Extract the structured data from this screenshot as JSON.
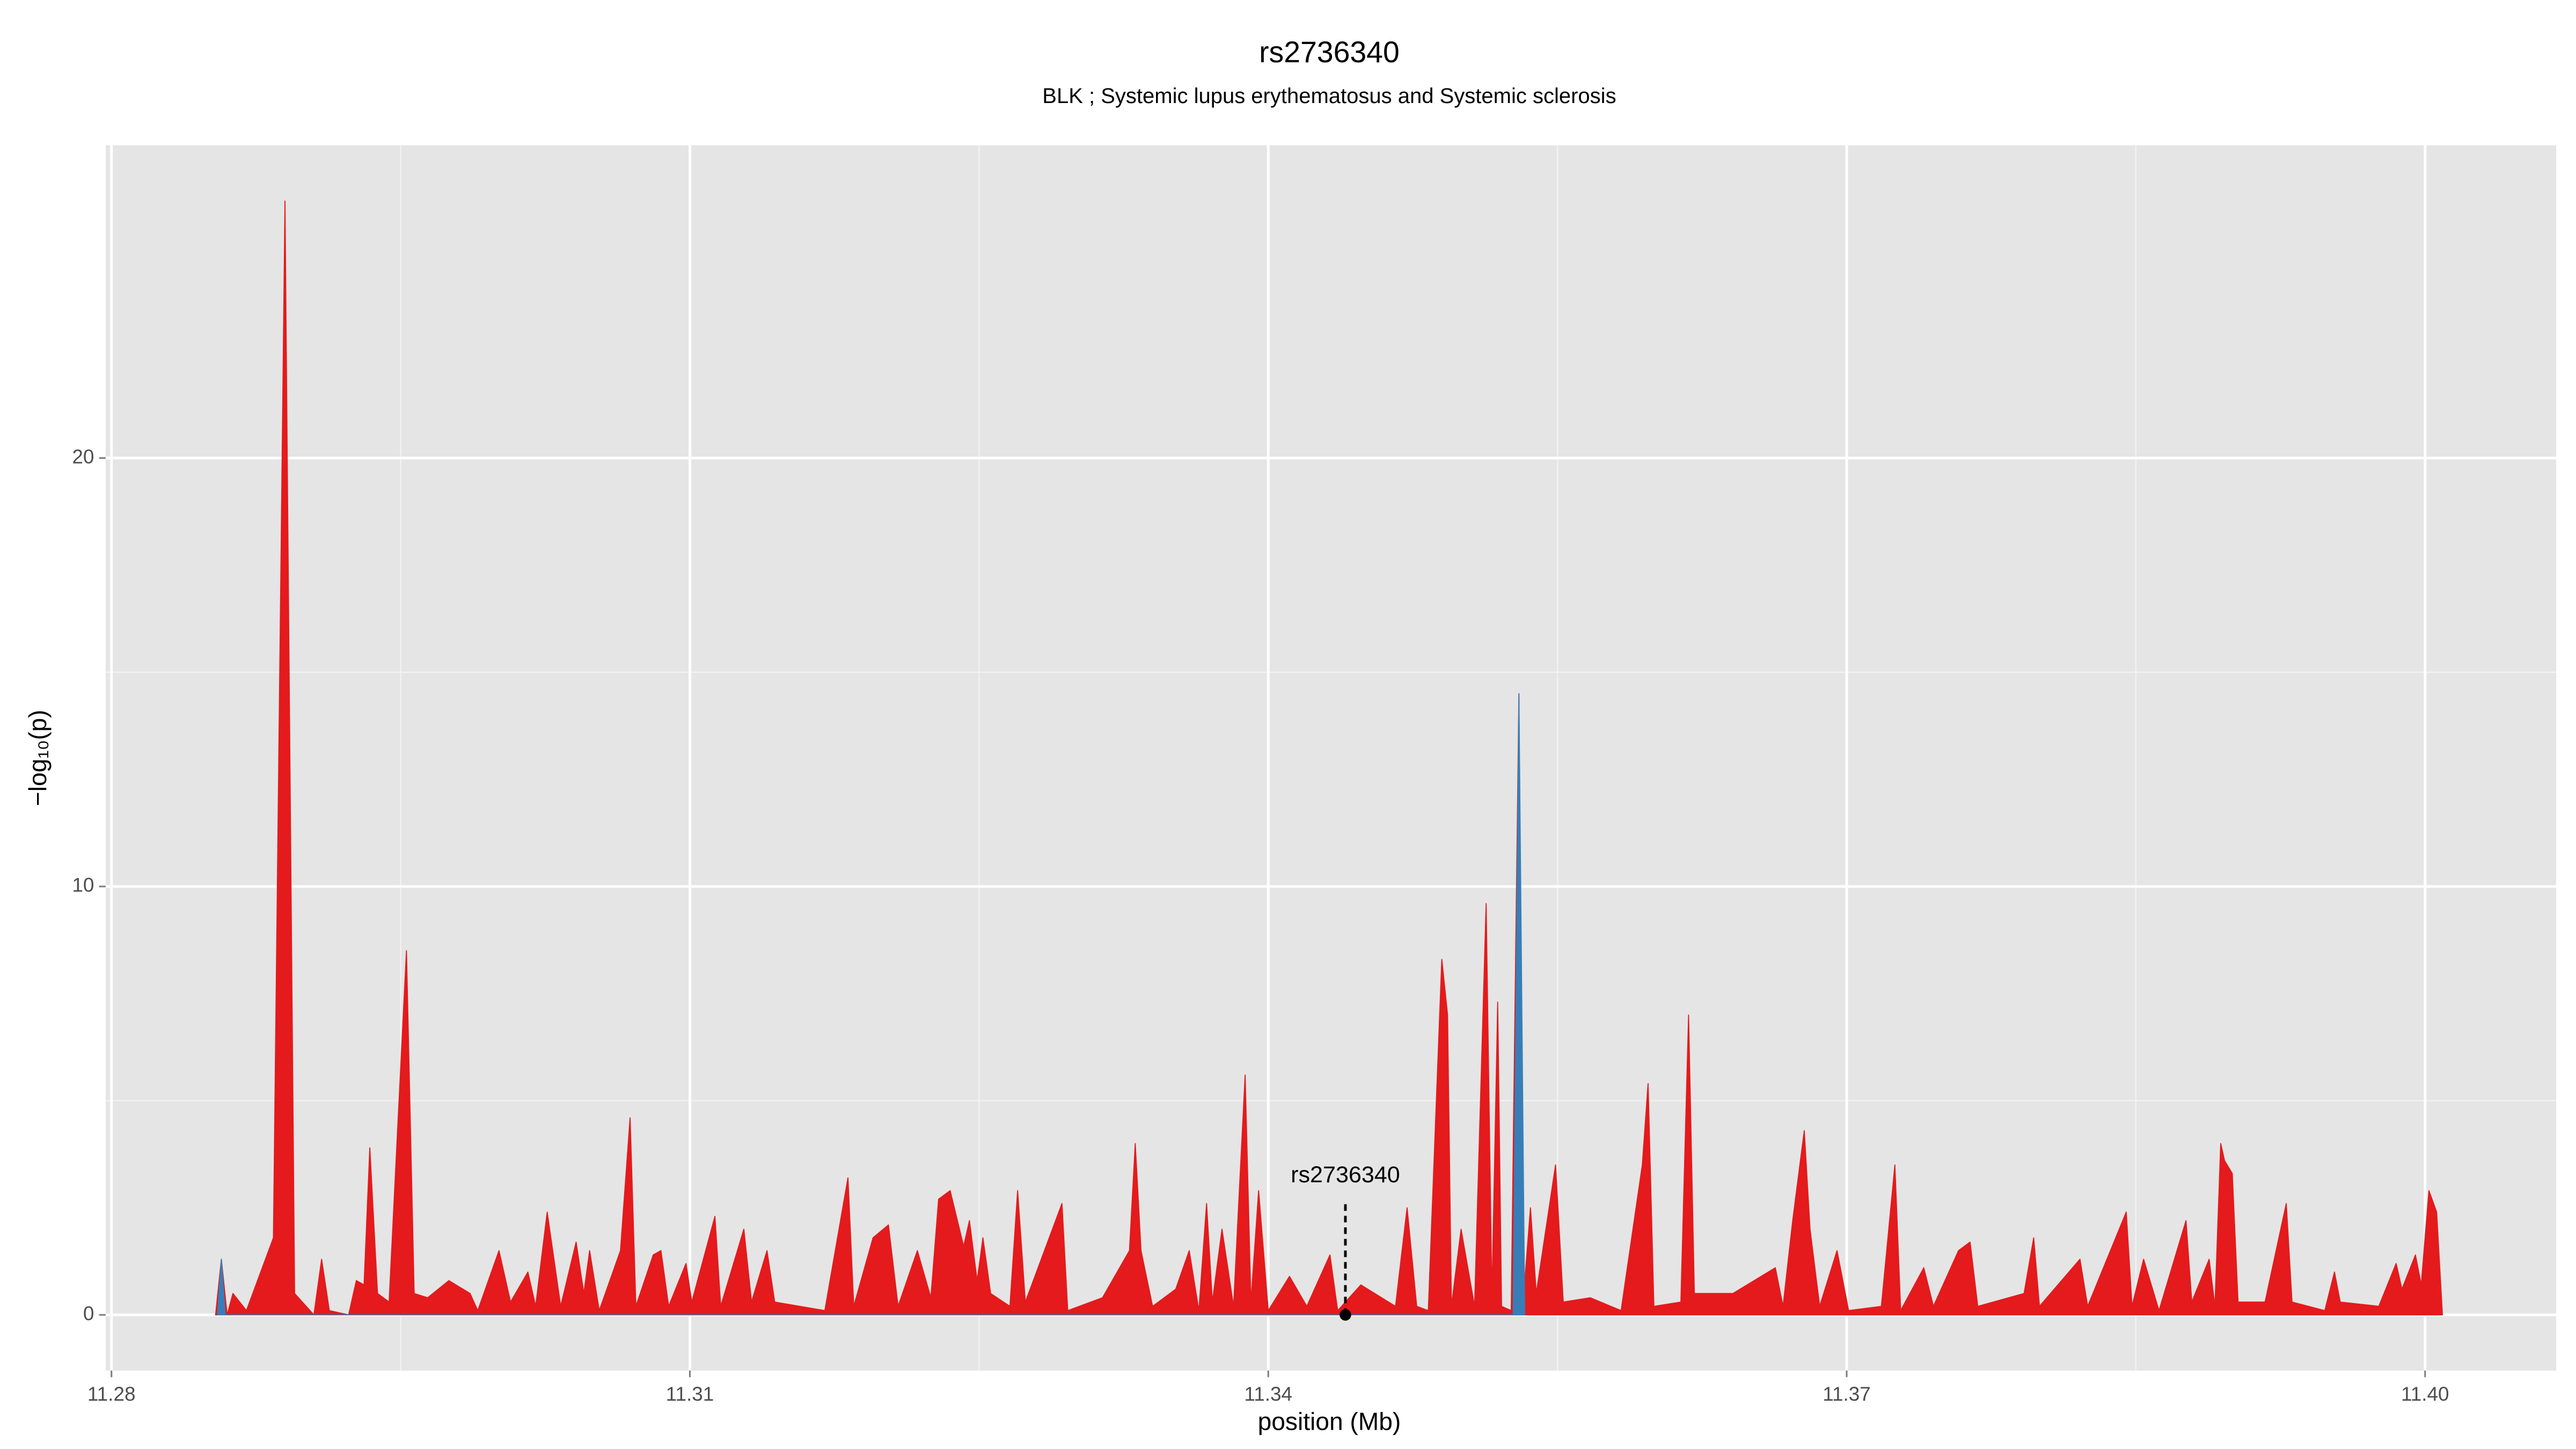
{
  "chart_data": {
    "type": "area",
    "title": "rs2736340",
    "subtitle": "BLK ; Systemic lupus erythematosus and Systemic sclerosis",
    "x_label": "position (Mb)",
    "y_label": "−log₁₀(p)",
    "xlim": [
      11.2797,
      11.4068
    ],
    "ylim": [
      -1.3,
      27.3
    ],
    "xticks": [
      11.28,
      11.31,
      11.34,
      11.37,
      {
        "value": 11.4,
        "label": "11.40"
      }
    ],
    "yticks": [
      0,
      10,
      20
    ],
    "grid": true,
    "series": [
      {
        "color": "#e41a1c",
        "x": [
          11.2854,
          11.2857,
          11.286,
          11.2863,
          11.287,
          11.2884,
          11.289,
          11.2895,
          11.2905,
          11.2909,
          11.2913,
          11.2923,
          11.2927,
          11.2931,
          11.2934,
          11.2938,
          11.2944,
          11.2953,
          11.2957,
          11.2964,
          11.2975,
          11.2986,
          11.299,
          11.3001,
          11.3007,
          11.3016,
          11.302,
          11.3026,
          11.3033,
          11.3041,
          11.3045,
          11.3048,
          11.3053,
          11.3064,
          11.3069,
          11.3072,
          11.3081,
          11.3085,
          11.3089,
          11.3098,
          11.3101,
          11.3113,
          11.3116,
          11.3128,
          11.3132,
          11.314,
          11.3144,
          11.317,
          11.3182,
          11.3185,
          11.3195,
          11.3203,
          11.3208,
          11.3218,
          11.3225,
          11.3229,
          11.3235,
          11.3242,
          11.3245,
          11.3249,
          11.3252,
          11.3256,
          11.3266,
          11.327,
          11.3274,
          11.3293,
          11.3296,
          11.3314,
          11.3328,
          11.3331,
          11.3334,
          11.334,
          11.3352,
          11.3359,
          11.3364,
          11.3368,
          11.3371,
          11.3376,
          11.3382,
          11.3388,
          11.3391,
          11.3395,
          11.34,
          11.3411,
          11.342,
          11.3432,
          11.3436,
          11.3448,
          11.3466,
          11.3472,
          11.3477,
          11.3483,
          11.349,
          11.3493,
          11.3495,
          11.35,
          11.3507,
          11.3513,
          11.3516,
          11.3519,
          11.3521,
          11.3526,
          11.353,
          11.3532,
          11.3536,
          11.3539,
          11.3549,
          11.3553,
          11.3567,
          11.3583,
          11.3594,
          11.3597,
          11.36,
          11.3614,
          11.3618,
          11.3621,
          11.3641,
          11.3663,
          11.3667,
          11.3672,
          11.3678,
          11.3681,
          11.3686,
          11.3695,
          11.3701,
          11.3718,
          11.3725,
          11.3728,
          11.374,
          11.3745,
          11.3758,
          11.3764,
          11.3768,
          11.3792,
          11.3797,
          11.38,
          11.3821,
          11.3825,
          11.3845,
          11.3848,
          11.3854,
          11.3862,
          11.3876,
          11.3879,
          11.3888,
          11.3891,
          11.3894,
          11.3896,
          11.39,
          11.3903,
          11.3917,
          11.3928,
          11.3931,
          11.3948,
          11.3953,
          11.3956,
          11.3976,
          11.3985,
          11.3988,
          11.3995,
          11.3998,
          11.4002,
          11.4006,
          11.4009
        ],
        "values": [
          0,
          1.3,
          0,
          0.5,
          0.1,
          1.8,
          26,
          0.5,
          0,
          1.3,
          0.1,
          0,
          0.8,
          0.7,
          3.9,
          0.5,
          0.3,
          8.5,
          0.5,
          0.4,
          0.8,
          0.5,
          0.1,
          1.5,
          0.3,
          1.0,
          0.2,
          2.4,
          0.2,
          1.7,
          0.5,
          1.5,
          0.1,
          1.5,
          4.6,
          0.2,
          1.4,
          1.5,
          0.2,
          1.2,
          0.3,
          2.3,
          0.2,
          2.0,
          0.3,
          1.5,
          0.3,
          0.1,
          3.2,
          0.2,
          1.8,
          2.1,
          0.2,
          1.5,
          0.4,
          2.7,
          2.9,
          1.6,
          2.2,
          0.8,
          1.8,
          0.5,
          0.2,
          2.9,
          0.3,
          2.6,
          0.1,
          0.4,
          1.5,
          4.0,
          1.5,
          0.2,
          0.6,
          1.5,
          0.1,
          2.6,
          0.3,
          2.0,
          0.2,
          5.6,
          0.3,
          2.9,
          0.1,
          0.9,
          0.2,
          1.4,
          0.1,
          0.7,
          0.2,
          2.5,
          0.2,
          0.1,
          8.3,
          7.0,
          0.2,
          2.0,
          0.2,
          9.6,
          0.4,
          7.3,
          0.2,
          0.1,
          14.5,
          0.2,
          2.5,
          0.5,
          3.5,
          0.3,
          0.4,
          0.1,
          3.5,
          5.4,
          0.2,
          0.3,
          7.0,
          0.5,
          0.5,
          1.1,
          0.2,
          2.2,
          4.3,
          2.0,
          0.2,
          1.5,
          0.1,
          0.2,
          3.5,
          0.1,
          1.1,
          0.2,
          1.5,
          1.7,
          0.2,
          0.5,
          1.8,
          0.2,
          1.3,
          0.2,
          2.4,
          0.2,
          1.3,
          0.1,
          2.2,
          0.3,
          1.3,
          0.2,
          4.0,
          3.6,
          3.3,
          0.3,
          0.3,
          2.6,
          0.3,
          0.1,
          1.0,
          0.3,
          0.2,
          1.2,
          0.6,
          1.4,
          0.7,
          2.9,
          2.4,
          0
        ]
      },
      {
        "color": "#377eb8",
        "x": [
          11.2855,
          11.2857,
          11.2859,
          11.3527,
          11.353,
          11.3533
        ],
        "values": [
          0,
          1.3,
          0,
          0,
          14.5,
          0
        ]
      }
    ],
    "annotation": {
      "text": "rs2736340",
      "x": 11.344,
      "y": 0
    }
  }
}
